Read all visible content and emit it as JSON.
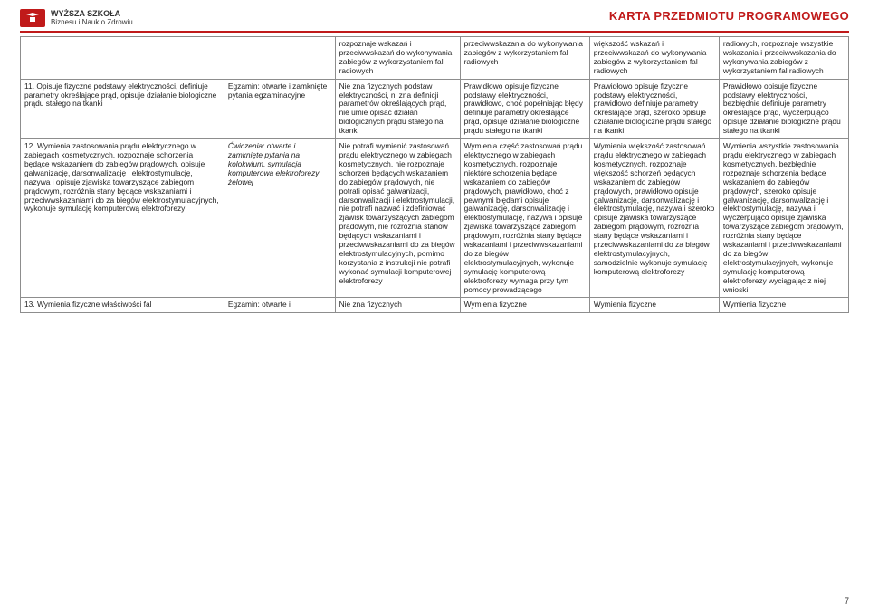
{
  "header": {
    "school_top": "WYŻSZA SZKOŁA",
    "school_bottom": "Biznesu i Nauk o Zdrowiu",
    "title": "KARTA PRZEDMIOTU PROGRAMOWEGO"
  },
  "rows": [
    {
      "c0": "",
      "c1": "",
      "c2": "rozpoznaje wskazań i przeciwwskazań do wykonywania zabiegów z wykorzystaniem fal radiowych",
      "c3": "przeciwwskazania do wykonywania zabiegów z wykorzystaniem fal radiowych",
      "c4": "większość wskazań i przeciwwskazań do wykonywania zabiegów z wykorzystaniem fal radiowych",
      "c5": "radiowych, rozpoznaje wszystkie wskazania i przeciwwskazania do wykonywania zabiegów z wykorzystaniem fal radiowych"
    },
    {
      "c0": "11. Opisuje fizyczne podstawy elektryczności, definiuje parametry określające prąd, opisuje działanie biologiczne prądu stałego na tkanki",
      "c1": "Egzamin: otwarte i zamknięte pytania egzaminacyjne",
      "c2": "Nie zna fizycznych podstaw elektryczności, ni zna definicji parametrów określających prąd, nie umie opisać działań biologicznych prądu stałego na tkanki",
      "c3": "Prawidłowo opisuje fizyczne podstawy elektryczności, prawidłowo, choć popełniając błędy definiuje parametry określające prąd, opisuje działanie biologiczne prądu stałego na tkanki",
      "c4": "Prawidłowo opisuje fizyczne podstawy elektryczności, prawidłowo definiuje parametry określające prąd, szeroko opisuje działanie biologiczne prądu stałego na tkanki",
      "c5": "Prawidłowo opisuje fizyczne podstawy elektryczności, bezbłędnie definiuje parametry określające prąd, wyczerpująco opisuje działanie biologiczne prądu stałego na tkanki"
    },
    {
      "c0": "12. Wymienia zastosowania prądu elektrycznego w zabiegach kosmetycznych, rozpoznaje schorzenia będące wskazaniem do zabiegów prądowych, opisuje galwanizację, darsonwalizację i elektrostymulację, nazywa i opisuje zjawiska towarzyszące zabiegom prądowym, rozróżnia stany będące wskazaniami i przeciwwskazaniami do za biegów elektrostymulacyjnych, wykonuje symulację komputerową elektroforezy",
      "c1": "Ćwiczenia: otwarte i zamknięte pytania na kolokwium, symulacja komputerowa elektroforezy żelowej",
      "c1_italic": true,
      "c2": "Nie potrafi wymienić zastosowań prądu elektrycznego w zabiegach kosmetycznych, nie rozpoznaje schorzeń będących wskazaniem do zabiegów prądowych, nie potrafi opisać galwanizacji, darsonwalizacji i elektrostymulacji, nie potrafi nazwać i zdefiniować zjawisk towarzyszących zabiegom prądowym, nie rozróżnia stanów będących wskazaniami i przeciwwskazaniami do za biegów elektrostymulacyjnych, pomimo korzystania z instrukcji nie potrafi wykonać symulacji komputerowej elektroforezy",
      "c3": "Wymienia część zastosowań prądu elektrycznego w zabiegach kosmetycznych, rozpoznaje niektóre schorzenia będące wskazaniem do zabiegów prądowych, prawidłowo, choć z pewnymi błędami opisuje galwanizację, darsonwalizację i elektrostymulację, nazywa i opisuje zjawiska towarzyszące zabiegom prądowym, rozróżnia stany będące wskazaniami i przeciwwskazaniami do za biegów elektrostymulacyjnych, wykonuje symulację komputerową elektroforezy wymaga przy tym pomocy prowadzącego",
      "c4": "Wymienia większość zastosowań prądu elektrycznego w zabiegach kosmetycznych, rozpoznaje większość schorzeń będących wskazaniem do zabiegów prądowych, prawidłowo opisuje galwanizację, darsonwalizację i elektrostymulację, nazywa i szeroko opisuje zjawiska towarzyszące zabiegom prądowym, rozróżnia stany będące wskazaniami i przeciwwskazaniami do za biegów elektrostymulacyjnych, samodzielnie wykonuje symulację komputerową elektroforezy",
      "c5": "Wymienia wszystkie zastosowania prądu elektrycznego w zabiegach kosmetycznych, bezbłędnie rozpoznaje schorzenia będące wskazaniem do zabiegów prądowych, szeroko opisuje galwanizację, darsonwalizację i elektrostymulację, nazywa i wyczerpująco opisuje zjawiska towarzyszące zabiegom prądowym, rozróżnia stany będące wskazaniami i przeciwwskazaniami do za biegów elektrostymulacyjnych, wykonuje symulację komputerową elektroforezy wyciągając z niej wnioski"
    },
    {
      "c0": "13. Wymienia fizyczne właściwości fal",
      "c1": "Egzamin: otwarte i",
      "c2": "Nie zna fizycznych",
      "c3": "Wymienia fizyczne",
      "c4": "Wymienia fizyczne",
      "c5": "Wymienia fizyczne"
    }
  ],
  "page_number": "7",
  "colors": {
    "accent": "#c01a1a",
    "border": "#8d8d8d",
    "text": "#222222",
    "bg": "#ffffff"
  }
}
